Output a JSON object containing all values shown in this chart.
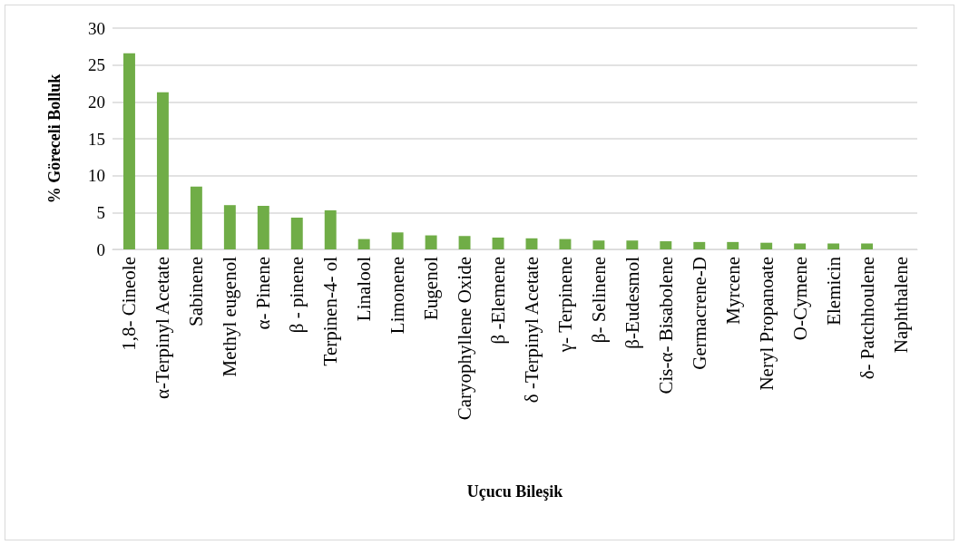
{
  "chart_data": {
    "type": "bar",
    "xlabel": "Uçucu Bileşik",
    "ylabel": "% Göreceli Bolluk",
    "categories": [
      "1,8- Cineole",
      "α-Terpinyl Acetate",
      "Sabinene",
      "Methyl eugenol",
      "α- Pinene",
      "β - pinene",
      "Terpinen-4- ol",
      "Linalool",
      "Limonene",
      "Eugenol",
      "Caryophyllene Oxide",
      "β -Elemene",
      "δ -Terpinyl Acetate",
      "γ- Terpinene",
      "β- Selinene",
      "β-Eudesmol",
      "Cis-α- Bisabolene",
      "Germacrene-D",
      "Myrcene",
      "Neryl Propanoate",
      "O-Cymene",
      "Elemicin",
      "δ- Patchhoulene",
      "Naphthalene"
    ],
    "values": [
      26.6,
      21.3,
      8.5,
      6.0,
      5.9,
      4.3,
      5.3,
      1.4,
      2.3,
      1.9,
      1.8,
      1.6,
      1.5,
      1.4,
      1.2,
      1.2,
      1.1,
      1.0,
      1.0,
      0.9,
      0.8,
      0.8,
      0.8,
      0
    ],
    "color": "#70ad47",
    "ylim": [
      0,
      30
    ],
    "yticks": [
      0,
      5,
      10,
      15,
      20,
      25,
      30
    ],
    "grid": "y"
  }
}
